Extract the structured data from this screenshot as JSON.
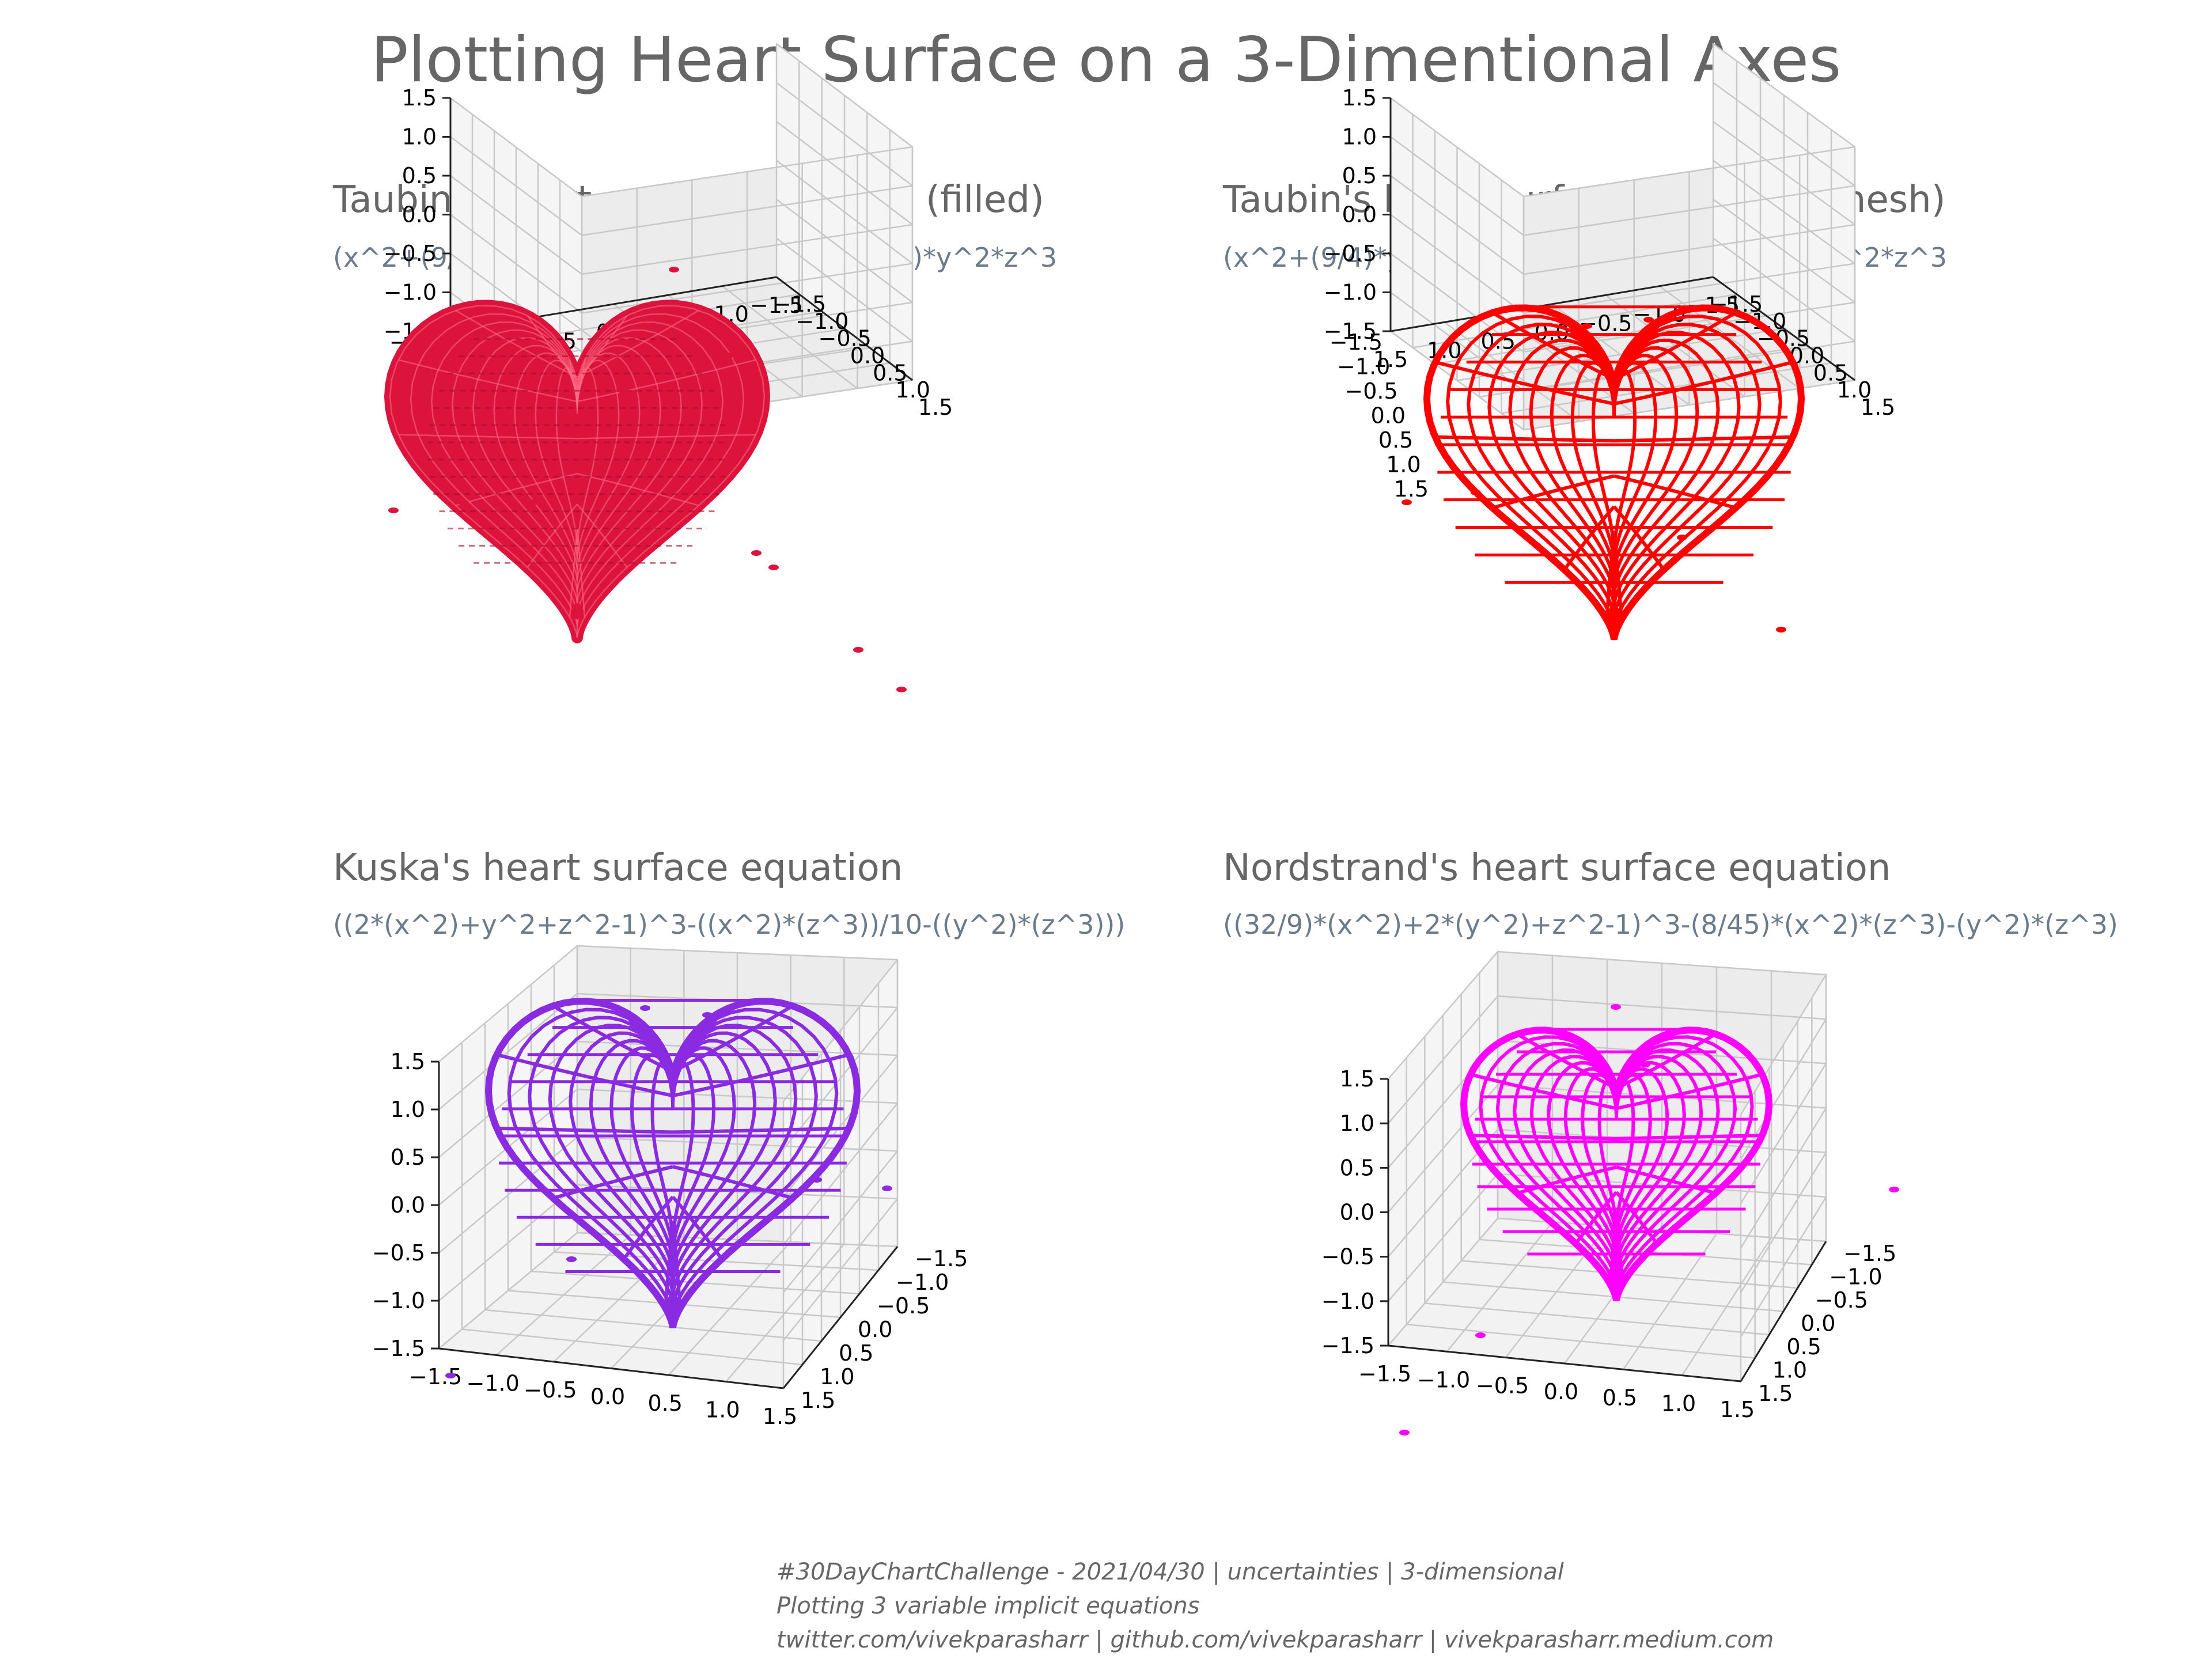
{
  "title": "Plotting Heart Surface on a 3-Dimentional Axes",
  "caption": {
    "line1": "#30DayChartChallenge - 2021/04/30 | uncertainties | 3-dimensional",
    "line2": "Plotting 3 variable implicit equations",
    "line3": "twitter.com/vivekparasharr | github.com/vivekparasharr | vivekparasharr.medium.com"
  },
  "chart_data": [
    {
      "type": "surface3d",
      "title": "Taubin's heart surface equation (filled)",
      "subtitle": "(x^2+(9/4)*y^2+z^2-1)^3-x^2*z^3-(9/80)*y^2*z^3",
      "color": "#dc143c",
      "style": "filled",
      "xlim": [
        -1.5,
        1.5
      ],
      "ylim": [
        -1.5,
        1.5
      ],
      "zlim": [
        -1.5,
        1.5
      ],
      "ticks": [
        -1.5,
        -1.0,
        -0.5,
        0.0,
        0.5,
        1.0,
        1.5
      ],
      "tick_labels": [
        "−1.5",
        "−1.0",
        "−0.5",
        "0.0",
        "0.5",
        "1.0",
        "1.5"
      ],
      "grid": true
    },
    {
      "type": "surface3d",
      "title": "Taubin's heart surface equation (mesh)",
      "subtitle": "(x^2+(9/4)*y^2+z^2-1)^3-x^2*z^3-(9/80)*y^2*z^3",
      "color": "#ff0000",
      "style": "mesh",
      "xlim": [
        -1.5,
        1.5
      ],
      "ylim": [
        -1.5,
        1.5
      ],
      "zlim": [
        -1.5,
        1.5
      ],
      "ticks": [
        -1.5,
        -1.0,
        -0.5,
        0.0,
        0.5,
        1.0,
        1.5
      ],
      "tick_labels": [
        "−1.5",
        "−1.0",
        "−0.5",
        "0.0",
        "0.5",
        "1.0",
        "1.5"
      ],
      "grid": true
    },
    {
      "type": "surface3d",
      "title": "Kuska's heart surface equation",
      "subtitle": "((2*(x^2)+y^2+z^2-1)^3-((x^2)*(z^3))/10-((y^2)*(z^3)))",
      "color": "#8a2be2",
      "style": "mesh",
      "xlim": [
        -1.5,
        1.5
      ],
      "ylim": [
        -1.5,
        1.5
      ],
      "zlim": [
        -1.5,
        1.5
      ],
      "ticks": [
        -1.5,
        -1.0,
        -0.5,
        0.0,
        0.5,
        1.0,
        1.5
      ],
      "tick_labels": [
        "−1.5",
        "−1.0",
        "−0.5",
        "0.0",
        "0.5",
        "1.0",
        "1.5"
      ],
      "grid": true
    },
    {
      "type": "surface3d",
      "title": "Nordstrand's heart surface equation",
      "subtitle": "((32/9)*(x^2)+2*(y^2)+z^2-1)^3-(8/45)*(x^2)*(z^3)-(y^2)*(z^3)",
      "color": "#ff00ff",
      "style": "mesh",
      "xlim": [
        -1.5,
        1.5
      ],
      "ylim": [
        -1.5,
        1.5
      ],
      "zlim": [
        -1.5,
        1.5
      ],
      "ticks": [
        -1.5,
        -1.0,
        -0.5,
        0.0,
        0.5,
        1.0,
        1.5
      ],
      "tick_labels": [
        "−1.5",
        "−1.0",
        "−0.5",
        "0.0",
        "0.5",
        "1.0",
        "1.5"
      ],
      "grid": true
    }
  ]
}
